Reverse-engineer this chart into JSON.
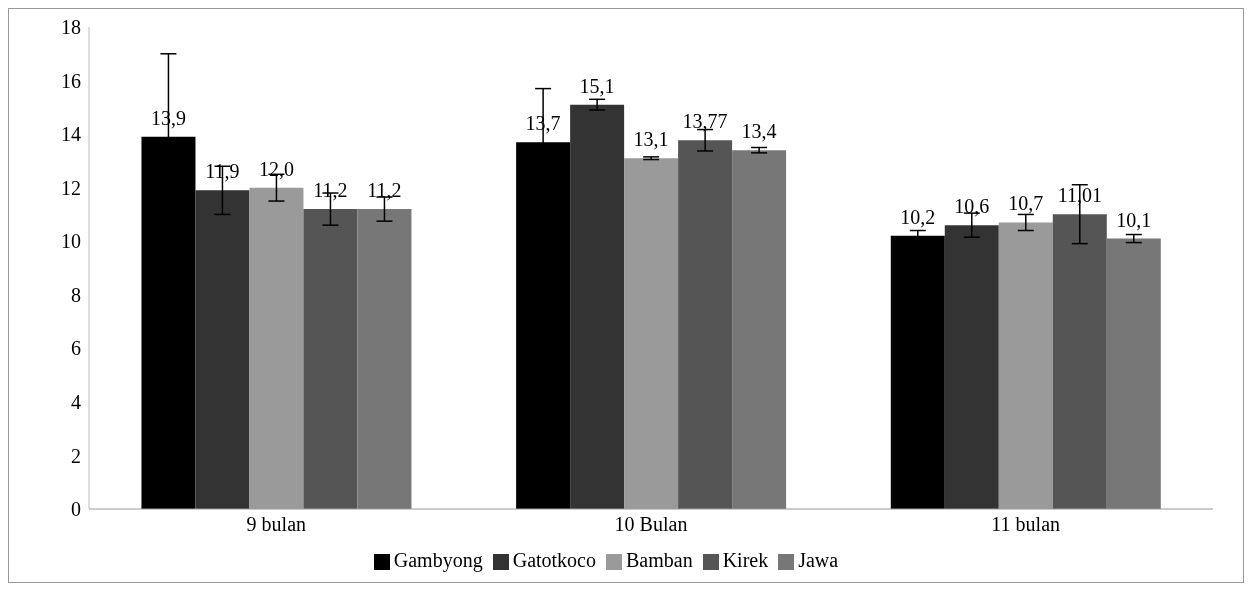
{
  "chart_data": {
    "type": "bar",
    "categories": [
      "9 bulan",
      "10 Bulan",
      "11 bulan"
    ],
    "series": [
      {
        "name": "Gambyong",
        "color": "#000000",
        "values": [
          13.9,
          13.7,
          10.2
        ],
        "errors": [
          3.1,
          2.0,
          0.2
        ],
        "value_labels": [
          "13,9",
          "13,7",
          "10,2"
        ]
      },
      {
        "name": "Gatotkoco",
        "color": "#333333",
        "values": [
          11.9,
          15.1,
          10.6
        ],
        "errors": [
          0.9,
          0.2,
          0.45
        ],
        "value_labels": [
          "11,9",
          "15,1",
          "10,6"
        ]
      },
      {
        "name": "Bamban",
        "color": "#9a9a9a",
        "values": [
          12.0,
          13.1,
          10.7
        ],
        "errors": [
          0.5,
          0.05,
          0.3
        ],
        "value_labels": [
          "12,0",
          "13,1",
          "10,7"
        ]
      },
      {
        "name": "Kirek",
        "color": "#555555",
        "values": [
          11.2,
          13.77,
          11.01
        ],
        "errors": [
          0.6,
          0.4,
          1.1
        ],
        "value_labels": [
          "11,2",
          "13,77",
          "11,01"
        ]
      },
      {
        "name": "Jawa",
        "color": "#777777",
        "values": [
          11.2,
          13.4,
          10.1
        ],
        "errors": [
          0.45,
          0.1,
          0.15
        ],
        "value_labels": [
          "11,2",
          "13,4",
          "10,1"
        ]
      }
    ],
    "ylim": [
      0,
      18
    ],
    "yticks": [
      0,
      2,
      4,
      6,
      8,
      10,
      12,
      14,
      16,
      18
    ],
    "grid": false,
    "legend": "bottom"
  }
}
